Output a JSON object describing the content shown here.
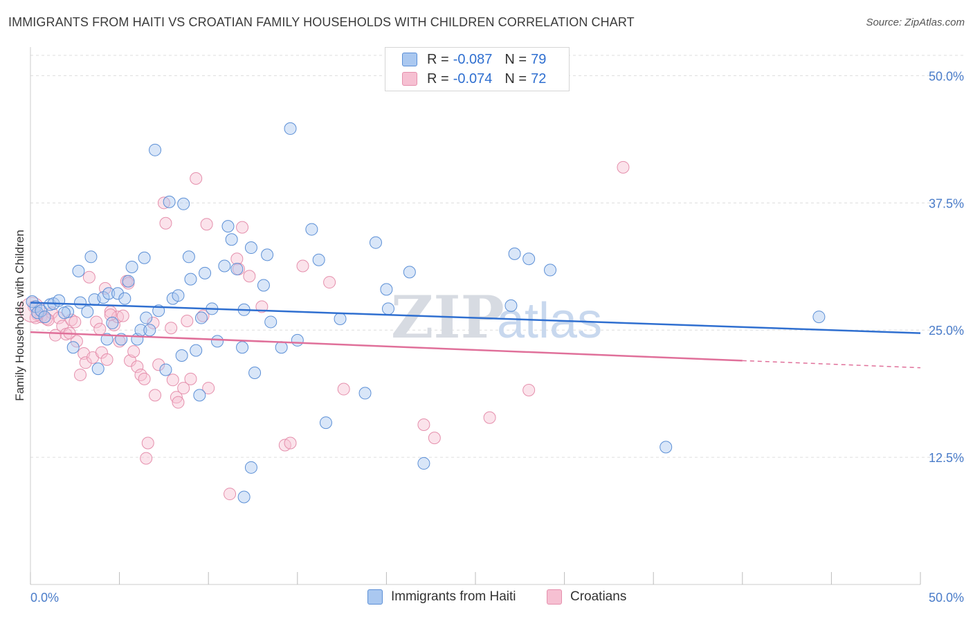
{
  "title": "IMMIGRANTS FROM HAITI VS CROATIAN FAMILY HOUSEHOLDS WITH CHILDREN CORRELATION CHART",
  "source": "Source: ZipAtlas.com",
  "watermark": "ZIPatlas",
  "colors": {
    "blue_fill": "#aac8f0",
    "blue_stroke": "#5b8fd6",
    "blue_line": "#2f6fd0",
    "pink_fill": "#f6c0d2",
    "pink_stroke": "#e58fac",
    "pink_line": "#e0709a",
    "grid": "#dddddd",
    "tick_text": "#4a7cc9"
  },
  "legend": {
    "rows": [
      {
        "r_label": "R =",
        "r_value": "-0.087",
        "n_label": "N =",
        "n_value": "79"
      },
      {
        "r_label": "R =",
        "r_value": "-0.074",
        "n_label": "N =",
        "n_value": "72"
      }
    ]
  },
  "bottom_legend": {
    "haiti": "Immigrants from Haiti",
    "croatians": "Croatians"
  },
  "chart_data": {
    "type": "scatter",
    "title": "IMMIGRANTS FROM HAITI VS CROATIAN FAMILY HOUSEHOLDS WITH CHILDREN CORRELATION CHART",
    "xlabel": "",
    "ylabel": "Family Households with Children",
    "xlim": [
      0,
      50
    ],
    "ylim": [
      0,
      52
    ],
    "x_tick_labels": [
      "0.0%",
      "50.0%"
    ],
    "y_ticks": [
      12.5,
      25.0,
      37.5,
      50.0
    ],
    "y_tick_labels": [
      "12.5%",
      "25.0%",
      "37.5%",
      "50.0%"
    ],
    "grid": true,
    "series": [
      {
        "name": "Immigrants from Haiti",
        "R": -0.087,
        "N": 79,
        "trend": {
          "x": [
            0,
            50
          ],
          "y": [
            27.7,
            24.7
          ]
        },
        "points": [
          [
            0.1,
            27.8
          ],
          [
            0.3,
            27.3
          ],
          [
            0.4,
            26.7
          ],
          [
            0.6,
            26.9
          ],
          [
            0.8,
            26.3
          ],
          [
            1.1,
            27.5
          ],
          [
            1.3,
            27.6
          ],
          [
            1.6,
            27.9
          ],
          [
            2.1,
            26.8
          ],
          [
            1.9,
            26.7
          ],
          [
            2.4,
            23.3
          ],
          [
            2.7,
            30.8
          ],
          [
            2.8,
            27.7
          ],
          [
            3.2,
            26.8
          ],
          [
            3.4,
            32.2
          ],
          [
            3.6,
            28.0
          ],
          [
            3.8,
            21.2
          ],
          [
            4.1,
            28.2
          ],
          [
            4.3,
            24.1
          ],
          [
            4.4,
            28.6
          ],
          [
            4.6,
            25.7
          ],
          [
            4.9,
            28.6
          ],
          [
            5.1,
            24.1
          ],
          [
            5.3,
            28.1
          ],
          [
            5.5,
            29.8
          ],
          [
            5.7,
            31.2
          ],
          [
            6.0,
            24.1
          ],
          [
            6.2,
            25.0
          ],
          [
            6.4,
            32.1
          ],
          [
            6.5,
            26.2
          ],
          [
            7.0,
            42.7
          ],
          [
            7.2,
            26.9
          ],
          [
            7.6,
            21.1
          ],
          [
            7.8,
            37.6
          ],
          [
            8.0,
            28.1
          ],
          [
            8.3,
            28.4
          ],
          [
            8.5,
            22.5
          ],
          [
            8.6,
            37.4
          ],
          [
            8.9,
            32.2
          ],
          [
            9.0,
            30.0
          ],
          [
            9.3,
            23.0
          ],
          [
            9.5,
            18.6
          ],
          [
            9.6,
            26.2
          ],
          [
            9.8,
            30.6
          ],
          [
            10.2,
            27.1
          ],
          [
            10.5,
            23.9
          ],
          [
            10.9,
            31.3
          ],
          [
            11.1,
            35.2
          ],
          [
            11.3,
            33.9
          ],
          [
            11.6,
            31.0
          ],
          [
            11.9,
            23.3
          ],
          [
            12.0,
            27.0
          ],
          [
            12.4,
            33.1
          ],
          [
            12.6,
            20.8
          ],
          [
            13.1,
            29.4
          ],
          [
            13.3,
            32.4
          ],
          [
            13.5,
            25.8
          ],
          [
            14.1,
            23.3
          ],
          [
            14.6,
            44.8
          ],
          [
            15.0,
            24.0
          ],
          [
            15.8,
            34.9
          ],
          [
            16.2,
            31.9
          ],
          [
            16.6,
            15.9
          ],
          [
            17.4,
            26.1
          ],
          [
            18.8,
            18.8
          ],
          [
            19.4,
            33.6
          ],
          [
            20.0,
            29.0
          ],
          [
            20.1,
            27.1
          ],
          [
            21.3,
            30.7
          ],
          [
            22.1,
            11.9
          ],
          [
            27.0,
            27.4
          ],
          [
            27.2,
            32.5
          ],
          [
            28.0,
            32.0
          ],
          [
            29.2,
            30.9
          ],
          [
            35.7,
            13.5
          ],
          [
            44.3,
            26.3
          ],
          [
            12.0,
            8.6
          ],
          [
            12.4,
            11.5
          ],
          [
            6.7,
            25.0
          ]
        ]
      },
      {
        "name": "Croatians",
        "R": -0.074,
        "N": 72,
        "trend": {
          "x": [
            0,
            40
          ],
          "y": [
            24.8,
            22.0
          ]
        },
        "trend_dashed": {
          "x": [
            40,
            50
          ],
          "y": [
            22.0,
            21.3
          ]
        },
        "points": [
          [
            0.2,
            27.3
          ],
          [
            0.4,
            26.5
          ],
          [
            0.6,
            26.3
          ],
          [
            0.9,
            26.1
          ],
          [
            1.2,
            26.7
          ],
          [
            1.4,
            24.5
          ],
          [
            1.6,
            26.2
          ],
          [
            1.8,
            25.4
          ],
          [
            2.0,
            24.6
          ],
          [
            2.2,
            24.7
          ],
          [
            2.3,
            26.0
          ],
          [
            2.6,
            23.9
          ],
          [
            2.8,
            20.6
          ],
          [
            3.0,
            22.7
          ],
          [
            3.1,
            21.8
          ],
          [
            3.3,
            30.2
          ],
          [
            3.5,
            22.3
          ],
          [
            3.7,
            25.8
          ],
          [
            3.9,
            25.1
          ],
          [
            4.0,
            22.8
          ],
          [
            4.2,
            29.1
          ],
          [
            4.3,
            22.1
          ],
          [
            4.5,
            26.8
          ],
          [
            4.7,
            25.5
          ],
          [
            4.9,
            26.3
          ],
          [
            5.0,
            23.9
          ],
          [
            5.2,
            26.4
          ],
          [
            5.4,
            29.8
          ],
          [
            5.6,
            22.0
          ],
          [
            5.8,
            22.9
          ],
          [
            6.0,
            21.4
          ],
          [
            6.2,
            20.6
          ],
          [
            6.4,
            20.2
          ],
          [
            6.5,
            12.4
          ],
          [
            6.6,
            13.9
          ],
          [
            6.9,
            25.7
          ],
          [
            7.0,
            18.6
          ],
          [
            7.2,
            21.6
          ],
          [
            7.5,
            37.5
          ],
          [
            7.6,
            35.5
          ],
          [
            7.9,
            25.2
          ],
          [
            8.0,
            20.1
          ],
          [
            8.2,
            18.4
          ],
          [
            8.3,
            17.9
          ],
          [
            8.6,
            19.3
          ],
          [
            8.8,
            25.9
          ],
          [
            9.0,
            20.2
          ],
          [
            9.3,
            39.9
          ],
          [
            9.7,
            26.4
          ],
          [
            9.9,
            35.4
          ],
          [
            10.0,
            19.3
          ],
          [
            11.2,
            8.9
          ],
          [
            11.6,
            32.0
          ],
          [
            11.7,
            31.0
          ],
          [
            11.9,
            35.1
          ],
          [
            12.3,
            30.3
          ],
          [
            13.0,
            27.3
          ],
          [
            14.3,
            13.7
          ],
          [
            14.6,
            13.9
          ],
          [
            15.3,
            31.3
          ],
          [
            16.8,
            29.7
          ],
          [
            17.6,
            19.2
          ],
          [
            22.1,
            15.7
          ],
          [
            22.7,
            14.4
          ],
          [
            25.8,
            16.4
          ],
          [
            28.0,
            19.1
          ],
          [
            33.3,
            41.0
          ],
          [
            0.3,
            26.2
          ],
          [
            2.5,
            25.8
          ],
          [
            5.5,
            29.6
          ],
          [
            1.0,
            26.0
          ],
          [
            4.5,
            26.5
          ]
        ]
      }
    ]
  }
}
